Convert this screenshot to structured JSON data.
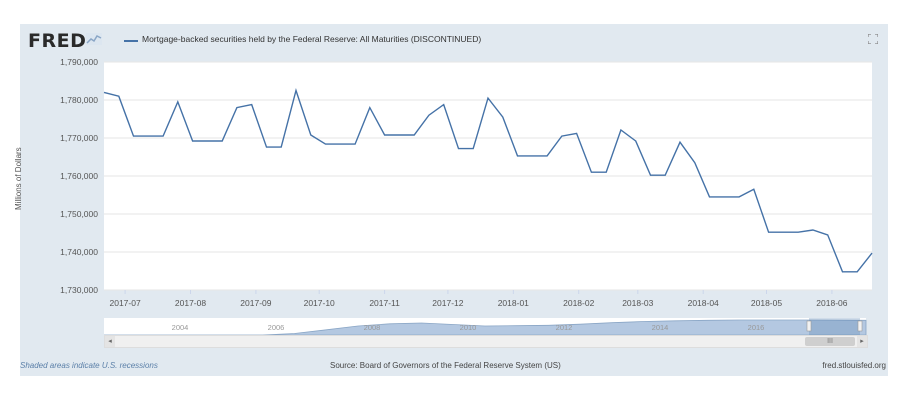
{
  "brand": {
    "logo": "FRED"
  },
  "header": {
    "series_title": "Mortgage-backed securities held by the Federal Reserve: All Maturities (DISCONTINUED)"
  },
  "colors": {
    "line": "#4572a7",
    "frame_bg": "#e1e9f0",
    "plot_bg": "#ffffff",
    "navigator_fill": "#b4c8e1"
  },
  "chart_data": {
    "type": "line",
    "ylabel": "Millions of Dollars",
    "ylim": [
      1730000,
      1790000
    ],
    "y_ticks": [
      "1,730,000",
      "1,740,000",
      "1,750,000",
      "1,760,000",
      "1,770,000",
      "1,780,000",
      "1,790,000"
    ],
    "x_ticks": [
      "2017-07",
      "2017-08",
      "2017-09",
      "2017-10",
      "2017-11",
      "2017-12",
      "2018-01",
      "2018-02",
      "2018-03",
      "2018-04",
      "2018-05",
      "2018-06"
    ],
    "grid": true,
    "series": [
      {
        "x": [
          "2017-06-21",
          "2017-06-28",
          "2017-07-05",
          "2017-07-12",
          "2017-07-19",
          "2017-07-26",
          "2017-08-02",
          "2017-08-09",
          "2017-08-16",
          "2017-08-23",
          "2017-08-30",
          "2017-09-06",
          "2017-09-13",
          "2017-09-20",
          "2017-09-27",
          "2017-10-04",
          "2017-10-11",
          "2017-10-18",
          "2017-10-25",
          "2017-11-01",
          "2017-11-08",
          "2017-11-15",
          "2017-11-22",
          "2017-11-29",
          "2017-12-06",
          "2017-12-13",
          "2017-12-20",
          "2017-12-27",
          "2018-01-03",
          "2018-01-10",
          "2018-01-17",
          "2018-01-24",
          "2018-01-31",
          "2018-02-07",
          "2018-02-14",
          "2018-02-21",
          "2018-02-28",
          "2018-03-07",
          "2018-03-14",
          "2018-03-21",
          "2018-03-28",
          "2018-04-04",
          "2018-04-11",
          "2018-04-18",
          "2018-04-25",
          "2018-05-02",
          "2018-05-09",
          "2018-05-16",
          "2018-05-23",
          "2018-05-30",
          "2018-06-06",
          "2018-06-13",
          "2018-06-20"
        ],
        "values": [
          1782000,
          1781000,
          1770500,
          1770500,
          1770500,
          1779500,
          1769200,
          1769200,
          1769200,
          1778000,
          1778800,
          1767600,
          1767600,
          1782500,
          1770800,
          1768400,
          1768400,
          1768400,
          1778000,
          1770800,
          1770800,
          1770800,
          1776000,
          1778800,
          1767200,
          1767200,
          1780500,
          1775500,
          1765300,
          1765300,
          1765300,
          1770500,
          1771200,
          1761000,
          1761000,
          1772100,
          1769200,
          1760200,
          1760200,
          1768900,
          1763500,
          1754500,
          1754500,
          1754500,
          1756500,
          1745200,
          1745200,
          1745200,
          1745800,
          1744500,
          1734800,
          1734800,
          1739700
        ]
      }
    ]
  },
  "navigator": {
    "labels": [
      "2004",
      "2006",
      "2008",
      "2010",
      "2012",
      "2014",
      "2016"
    ],
    "scroll_thumb_label": "III",
    "area_values": [
      0,
      0,
      0,
      0,
      0,
      0,
      0.1,
      0.35,
      0.6,
      0.75,
      0.8,
      0.7,
      0.6,
      0.62,
      0.65,
      0.72,
      0.82,
      0.9,
      0.95,
      0.98,
      1.0,
      1.0,
      1.0,
      0.99,
      0.98
    ]
  },
  "footer": {
    "recession_note": "Shaded areas indicate U.S. recessions",
    "source": "Source: Board of Governors of the Federal Reserve System (US)",
    "site": "fred.stlouisfed.org"
  },
  "icons": {
    "logo_mark": "fred-graph-icon",
    "fullscreen": "fullscreen-icon"
  }
}
